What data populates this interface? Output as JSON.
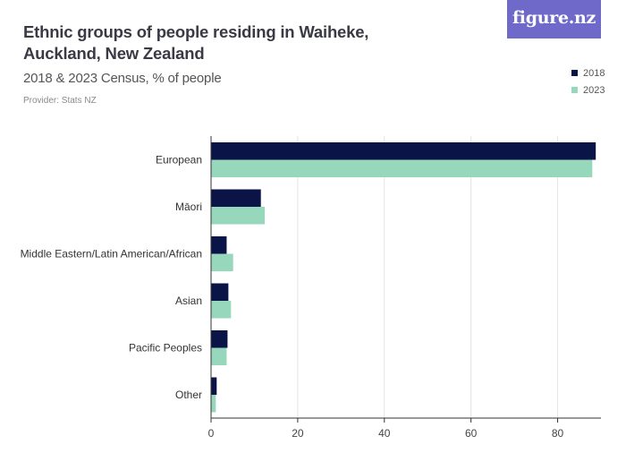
{
  "header": {
    "title": "Ethnic groups of people residing in Waiheke, Auckland, New Zealand",
    "subtitle": "2018 & 2023 Census, % of people",
    "provider": "Provider: Stats NZ",
    "logo_text": "figure.nz"
  },
  "colors": {
    "series_2018": "#0b1446",
    "series_2023": "#97d8bd",
    "logo_bg": "#6f6ac9",
    "grid": "#e4e4e4"
  },
  "chart_data": {
    "type": "bar",
    "orientation": "horizontal",
    "title": "Ethnic groups of people residing in Waiheke, Auckland, New Zealand",
    "subtitle": "2018 & 2023 Census, % of people",
    "categories": [
      "European",
      "Māori",
      "Middle Eastern/Latin American/African",
      "Asian",
      "Pacific Peoples",
      "Other"
    ],
    "series": [
      {
        "name": "2018",
        "values": [
          88.8,
          11.5,
          3.6,
          4.0,
          3.8,
          1.3
        ]
      },
      {
        "name": "2023",
        "values": [
          88.0,
          12.4,
          5.1,
          4.6,
          3.6,
          1.1
        ]
      }
    ],
    "xlim": [
      0,
      90
    ],
    "xticks": [
      0,
      20,
      40,
      60,
      80
    ],
    "xlabel": "",
    "ylabel": "",
    "grid": "vertical",
    "legend_position": "top-right"
  }
}
